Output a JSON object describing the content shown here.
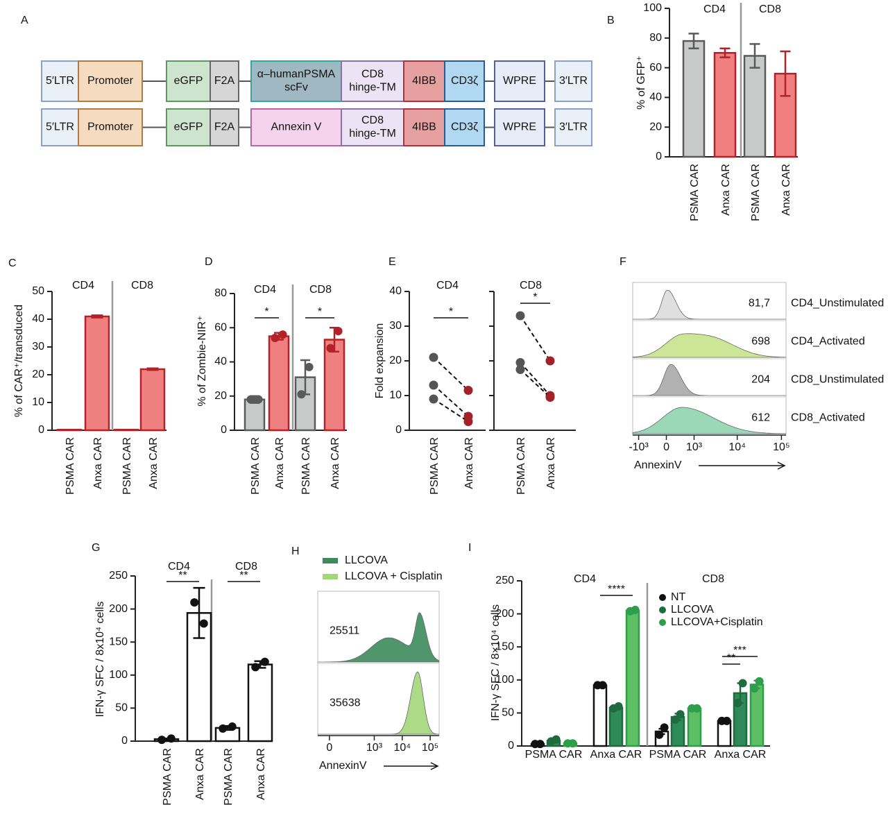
{
  "diagram": {
    "panel": "A",
    "rows": [
      [
        [
          "5′LTR"
        ],
        [
          "Promoter"
        ],
        [
          "eGFP"
        ],
        [
          "F2A"
        ],
        [
          "α–humanPSMA",
          "scFv"
        ],
        [
          "CD8",
          "hinge-TM"
        ],
        [
          "4IBB"
        ],
        [
          "CD3ζ"
        ],
        [
          "WPRE"
        ],
        [
          "3′LTR"
        ]
      ],
      [
        [
          "5′LTR"
        ],
        [
          "Promoter"
        ],
        [
          "eGFP"
        ],
        [
          "F2A"
        ],
        [
          "Annexin V"
        ],
        [
          "CD8",
          "hinge-TM"
        ],
        [
          "4IBB"
        ],
        [
          "CD3ζ"
        ],
        [
          "WPRE"
        ],
        [
          "3′LTR"
        ]
      ]
    ]
  },
  "chart_data": [
    {
      "panel": "B",
      "type": "bar",
      "ylabel": "% of GFP⁺",
      "groups": [
        "CD4",
        "CD8"
      ],
      "categories": [
        "PSMA CAR",
        "Anxa CAR",
        "PSMA CAR",
        "Anxa CAR"
      ],
      "values": [
        78,
        70,
        68,
        56
      ],
      "errors": [
        5,
        3,
        8,
        15
      ],
      "colors": [
        "#c8c9c9",
        "#f08080",
        "#c8c9c9",
        "#f08080"
      ],
      "edge_colors": [
        "#5a5a5a",
        "#b22228",
        "#5a5a5a",
        "#b22228"
      ],
      "ylim": [
        0,
        100
      ],
      "yticks": [
        0,
        20,
        40,
        60,
        80,
        100
      ]
    },
    {
      "panel": "C",
      "type": "bar",
      "ylabel": "% of CAR⁺/transduced",
      "groups": [
        "CD4",
        "CD8"
      ],
      "categories": [
        "PSMA CAR",
        "Anxa CAR",
        "PSMA CAR",
        "Anxa CAR"
      ],
      "values": [
        0.2,
        41,
        0.2,
        22
      ],
      "errors": [
        0,
        0.4,
        0,
        0.3
      ],
      "colors": [
        "#f08080",
        "#f08080",
        "#f08080",
        "#f08080"
      ],
      "edge_colors": [
        "#b22228",
        "#b22228",
        "#b22228",
        "#b22228"
      ],
      "ylim": [
        0,
        50
      ],
      "yticks": [
        0,
        10,
        20,
        30,
        40,
        50
      ]
    },
    {
      "panel": "D",
      "type": "bar",
      "ylabel": "% of Zombie-NIR⁺",
      "groups": [
        "CD4",
        "CD8"
      ],
      "categories": [
        "PSMA CAR",
        "Anxa CAR",
        "PSMA CAR",
        "Anxa CAR"
      ],
      "values": [
        18,
        55,
        31,
        53
      ],
      "errors": [
        2,
        2,
        10,
        7
      ],
      "points": [
        [
          18,
          18
        ],
        [
          54,
          56
        ],
        [
          21,
          37
        ],
        [
          48,
          58
        ]
      ],
      "colors": [
        "#c8c9c9",
        "#f08080",
        "#c8c9c9",
        "#f08080"
      ],
      "edge_colors": [
        "#5a5a5a",
        "#b22228",
        "#5a5a5a",
        "#b22228"
      ],
      "brackets": [
        "*",
        "*"
      ],
      "ylim": [
        0,
        80
      ],
      "yticks": [
        0,
        20,
        40,
        60,
        80
      ]
    },
    {
      "panel": "E",
      "type": "paired",
      "title": "CD4",
      "ylabel": "Fold expansion",
      "categories": [
        "PSMA CAR",
        "Anxa CAR"
      ],
      "pairs": [
        [
          21,
          11.5
        ],
        [
          13,
          4
        ],
        [
          9,
          2.5
        ]
      ],
      "colors": [
        "#555555",
        "#a3222a"
      ],
      "brackets": [
        "*"
      ],
      "ylim": [
        0,
        40
      ],
      "yticks": [
        0,
        10,
        20,
        30,
        40
      ]
    },
    {
      "type": "paired",
      "title": "CD8",
      "categories": [
        "PSMA CAR",
        "Anxa CAR"
      ],
      "pairs": [
        [
          33,
          20
        ],
        [
          19.5,
          10
        ],
        [
          17.5,
          9.5
        ]
      ],
      "colors": [
        "#555555",
        "#a3222a"
      ],
      "brackets": [
        "*"
      ],
      "ylim": [
        0,
        40
      ],
      "yticks": [
        0,
        10,
        20,
        30,
        40
      ]
    },
    {
      "panel": "F",
      "type": "density",
      "xlabel": "AnnexinV",
      "xscale": "logicle",
      "series": [
        {
          "name": "CD4_Unstimulated",
          "color": "#dcdcdc",
          "label": "81,7"
        },
        {
          "name": "CD4_Activated",
          "color": "#c6e28c",
          "label": "698"
        },
        {
          "name": "CD8_Unstimulated",
          "color": "#a9a9a9",
          "label": "204"
        },
        {
          "name": "CD8_Activated",
          "color": "#8fd4b0",
          "label": "612"
        }
      ],
      "xlim": [
        -1400,
        127000
      ],
      "xticks": [
        {
          "value": -1000,
          "label": "-10³"
        },
        0,
        {
          "value": 1000,
          "label": "10³"
        },
        {
          "value": 10000,
          "label": "10⁴"
        },
        {
          "value": 100000,
          "label": "10⁵"
        }
      ]
    },
    {
      "panel": "G",
      "type": "bar",
      "ylabel": "IFN-γ SFC / 8x10⁴ cells",
      "groups": [
        "CD4",
        "CD8"
      ],
      "categories": [
        "PSMA CAR",
        "Anxa CAR",
        "PSMA CAR",
        "Anxa CAR"
      ],
      "values": [
        3,
        194,
        20,
        116
      ],
      "errors": [
        1,
        38,
        3,
        5
      ],
      "points": [
        [
          2,
          4
        ],
        [
          210,
          178
        ],
        [
          19,
          22
        ],
        [
          112,
          120
        ]
      ],
      "colors": [
        "#ffffff",
        "#ffffff",
        "#ffffff",
        "#ffffff"
      ],
      "edge_colors": [
        "#111111",
        "#111111",
        "#111111",
        "#111111"
      ],
      "brackets": [
        "**",
        "**"
      ],
      "ylim": [
        0,
        250
      ],
      "yticks": [
        0,
        50,
        100,
        150,
        200,
        250
      ]
    },
    {
      "panel": "H",
      "type": "density",
      "xlabel": "AnnexinV",
      "xscale": "logicle",
      "legend": "top-left",
      "series": [
        {
          "name": "LLCOVA",
          "color": "#3d8b5c",
          "label": "25511"
        },
        {
          "name": "LLCOVA + Cisplatin",
          "color": "#a3d77a",
          "label": "35638"
        }
      ],
      "xlim": [
        -56,
        209000
      ],
      "xticks": [
        0,
        {
          "value": 1000,
          "label": "10³"
        },
        {
          "value": 10000,
          "label": "10⁴"
        },
        {
          "value": 100000,
          "label": "10⁵"
        }
      ]
    },
    {
      "panel": "I",
      "type": "bar",
      "ylabel": "IFN-γ SFC / 8×10⁴ cells",
      "groups": [
        "CD4",
        "CD8"
      ],
      "categories": [
        "PSMA CAR",
        "Anxa CAR",
        "PSMA CAR",
        "Anxa CAR"
      ],
      "legend": "top-center",
      "series": [
        {
          "name": "NT",
          "color": "#ffffff",
          "edge_color": "#111111",
          "values": [
            3,
            92,
            22,
            38
          ],
          "errors": [
            0,
            1,
            4,
            0
          ],
          "points": [
            [
              3,
              3
            ],
            [
              92,
              92
            ],
            [
              17,
              28
            ],
            [
              38,
              38
            ]
          ]
        },
        {
          "name": "LLCOVA",
          "color": "#2e8a57",
          "edge_color": "#1d6b3e",
          "values": [
            8,
            58,
            44,
            80
          ],
          "errors": [
            2,
            2,
            5,
            15
          ],
          "points": [
            [
              7,
              10
            ],
            [
              57,
              60
            ],
            [
              40,
              48
            ],
            [
              65,
              95
            ]
          ]
        },
        {
          "name": "LLCOVA+Cisplatin",
          "color": "#5cbf63",
          "edge_color": "#2f9e4a",
          "values": [
            4,
            205,
            57,
            93
          ],
          "errors": [
            1,
            1,
            1,
            6
          ],
          "points": [
            [
              4,
              4
            ],
            [
              204,
              206
            ],
            [
              57,
              57
            ],
            [
              87,
              98
            ]
          ]
        }
      ],
      "brackets": [
        "****",
        "**",
        "***"
      ],
      "ylim": [
        0,
        250
      ],
      "yticks": [
        0,
        50,
        100,
        150,
        200,
        250
      ]
    }
  ]
}
